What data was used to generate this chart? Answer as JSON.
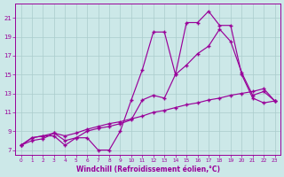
{
  "xlabel": "Windchill (Refroidissement éolien,°C)",
  "background_color": "#cce8e8",
  "grid_color": "#aacccc",
  "line_color": "#990099",
  "xlim_min": -0.5,
  "xlim_max": 23.5,
  "ylim_min": 6.5,
  "ylim_max": 22.5,
  "xticks": [
    0,
    1,
    2,
    3,
    4,
    5,
    6,
    7,
    8,
    9,
    10,
    11,
    12,
    13,
    14,
    15,
    16,
    17,
    18,
    19,
    20,
    21,
    22,
    23
  ],
  "yticks": [
    7,
    9,
    11,
    13,
    15,
    17,
    19,
    21
  ],
  "line1_x": [
    0,
    1,
    2,
    3,
    4,
    5,
    6,
    7,
    8,
    9,
    10,
    11,
    12,
    13,
    14,
    15,
    16,
    17,
    18,
    19,
    20,
    21,
    22,
    23
  ],
  "line1_y": [
    7.5,
    8.3,
    8.5,
    8.5,
    7.5,
    8.3,
    8.3,
    7.0,
    7.0,
    9.0,
    12.3,
    15.5,
    19.5,
    19.5,
    15.0,
    20.5,
    20.5,
    21.7,
    20.2,
    20.2,
    15.0,
    12.5,
    12.0,
    12.2
  ],
  "line2_x": [
    0,
    1,
    2,
    3,
    4,
    5,
    6,
    7,
    8,
    9,
    10,
    11,
    12,
    13,
    14,
    15,
    16,
    17,
    18,
    19,
    20,
    21,
    22,
    23
  ],
  "line2_y": [
    7.5,
    8.3,
    8.5,
    8.8,
    8.0,
    8.3,
    9.0,
    9.3,
    9.5,
    9.8,
    10.2,
    12.3,
    12.8,
    12.5,
    15.0,
    16.0,
    17.2,
    18.0,
    19.8,
    18.5,
    15.2,
    12.8,
    13.2,
    12.2
  ],
  "line3_x": [
    0,
    1,
    2,
    3,
    4,
    5,
    6,
    7,
    8,
    9,
    10,
    11,
    12,
    13,
    14,
    15,
    16,
    17,
    18,
    19,
    20,
    21,
    22,
    23
  ],
  "line3_y": [
    7.5,
    8.0,
    8.2,
    8.8,
    8.5,
    8.8,
    9.2,
    9.5,
    9.8,
    10.0,
    10.3,
    10.6,
    11.0,
    11.2,
    11.5,
    11.8,
    12.0,
    12.3,
    12.5,
    12.8,
    13.0,
    13.2,
    13.5,
    12.2
  ]
}
